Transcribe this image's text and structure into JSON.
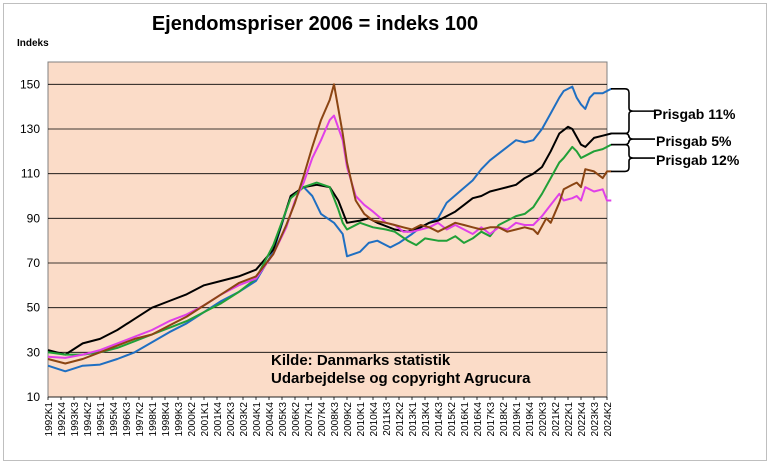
{
  "chart_data": {
    "type": "line",
    "title": "Ejendomspriser 2006 = indeks 100",
    "ylabel": "Indeks",
    "xlabel": "",
    "ylim": [
      10,
      160
    ],
    "yticks": [
      10,
      30,
      50,
      70,
      90,
      110,
      130,
      150
    ],
    "grid": true,
    "legend": "none",
    "plot_background": "#fbdcc8",
    "x_tick_labels": [
      "1992K1",
      "1992K4",
      "1993K3",
      "1994K2",
      "1995K1",
      "1995K4",
      "1996K3",
      "1997K2",
      "1998K1",
      "1998K4",
      "1999K3",
      "2000K2",
      "2001K1",
      "2001K4",
      "2002K3",
      "2003K2",
      "2004K1",
      "2004K4",
      "2005K3",
      "2006K2",
      "2007K1",
      "2007K4",
      "2008K3",
      "2009K2",
      "2010K1",
      "2010K4",
      "2011K3",
      "2012K2",
      "2013K1",
      "2013K4",
      "2014K3",
      "2015K2",
      "2016K1",
      "2016K4",
      "2017K3",
      "2018K2",
      "2019K1",
      "2019K4",
      "2020K3",
      "2021K2",
      "2022K1",
      "2022K4",
      "2023K3",
      "2024K2"
    ],
    "x_start_year": 1992,
    "quarters_per_year": 4,
    "series": [
      {
        "color": "#1f6fc2",
        "points": [
          [
            1992,
            24
          ],
          [
            1993,
            21.5
          ],
          [
            1994,
            24
          ],
          [
            1995,
            24.5
          ],
          [
            1996,
            27
          ],
          [
            1997,
            30
          ],
          [
            1998,
            34.5
          ],
          [
            1999,
            39
          ],
          [
            2000,
            43
          ],
          [
            2001,
            48
          ],
          [
            2002,
            53
          ],
          [
            2003,
            57
          ],
          [
            2004,
            62
          ],
          [
            2005,
            75
          ],
          [
            2006,
            100
          ],
          [
            2006.75,
            104
          ],
          [
            2007.25,
            100
          ],
          [
            2007.75,
            92
          ],
          [
            2008.5,
            88
          ],
          [
            2009.0,
            83
          ],
          [
            2009.25,
            73
          ],
          [
            2010,
            75
          ],
          [
            2010.5,
            79
          ],
          [
            2011,
            80
          ],
          [
            2011.75,
            77
          ],
          [
            2012.25,
            79
          ],
          [
            2013,
            83
          ],
          [
            2013.5,
            86
          ],
          [
            2014,
            88
          ],
          [
            2014.5,
            90
          ],
          [
            2015,
            97
          ],
          [
            2015.75,
            102
          ],
          [
            2016.5,
            107
          ],
          [
            2017,
            112
          ],
          [
            2017.5,
            116
          ],
          [
            2018,
            119
          ],
          [
            2018.5,
            122
          ],
          [
            2019,
            125
          ],
          [
            2019.5,
            124
          ],
          [
            2020,
            125
          ],
          [
            2020.5,
            130
          ],
          [
            2021,
            137
          ],
          [
            2021.5,
            144
          ],
          [
            2021.75,
            147
          ],
          [
            2022.25,
            149
          ],
          [
            2022.5,
            144
          ],
          [
            2022.75,
            141
          ],
          [
            2023.0,
            139
          ],
          [
            2023.25,
            144
          ],
          [
            2023.5,
            146
          ],
          [
            2024,
            146
          ],
          [
            2024.5,
            148
          ]
        ]
      },
      {
        "color": "#000000",
        "points": [
          [
            1992,
            31
          ],
          [
            1993,
            29
          ],
          [
            1994,
            34
          ],
          [
            1995,
            36
          ],
          [
            1996,
            40
          ],
          [
            1997,
            45
          ],
          [
            1998,
            50
          ],
          [
            1999,
            53
          ],
          [
            2000,
            56
          ],
          [
            2001,
            60
          ],
          [
            2002,
            62
          ],
          [
            2003,
            64
          ],
          [
            2004,
            67
          ],
          [
            2005,
            76
          ],
          [
            2006,
            100
          ],
          [
            2006.75,
            104
          ],
          [
            2007.5,
            105
          ],
          [
            2008.25,
            104
          ],
          [
            2008.75,
            98
          ],
          [
            2009.25,
            88
          ],
          [
            2010,
            89
          ],
          [
            2010.5,
            90
          ],
          [
            2011,
            88
          ],
          [
            2012,
            85
          ],
          [
            2012.75,
            84
          ],
          [
            2013.5,
            86
          ],
          [
            2014,
            88
          ],
          [
            2014.5,
            89
          ],
          [
            2015,
            91
          ],
          [
            2015.5,
            93
          ],
          [
            2016,
            96
          ],
          [
            2016.5,
            99
          ],
          [
            2017,
            100
          ],
          [
            2017.5,
            102
          ],
          [
            2018,
            103
          ],
          [
            2018.5,
            104
          ],
          [
            2019,
            105
          ],
          [
            2019.5,
            108
          ],
          [
            2020,
            110
          ],
          [
            2020.5,
            113
          ],
          [
            2021,
            120
          ],
          [
            2021.5,
            128
          ],
          [
            2022.0,
            131
          ],
          [
            2022.25,
            130
          ],
          [
            2022.75,
            123
          ],
          [
            2023.0,
            122
          ],
          [
            2023.5,
            126
          ],
          [
            2024,
            127
          ],
          [
            2024.5,
            128
          ]
        ]
      },
      {
        "color": "#21a038",
        "points": [
          [
            1992,
            30
          ],
          [
            1993,
            29
          ],
          [
            1994,
            29
          ],
          [
            1995,
            30
          ],
          [
            1996,
            32
          ],
          [
            1997,
            35
          ],
          [
            1998,
            38
          ],
          [
            1999,
            41
          ],
          [
            2000,
            44
          ],
          [
            2001,
            48
          ],
          [
            2002,
            52
          ],
          [
            2003,
            57
          ],
          [
            2004,
            63
          ],
          [
            2005,
            78
          ],
          [
            2006,
            99
          ],
          [
            2006.75,
            104
          ],
          [
            2007.5,
            106
          ],
          [
            2008.25,
            104
          ],
          [
            2008.75,
            94
          ],
          [
            2009.0,
            88
          ],
          [
            2009.25,
            85
          ],
          [
            2010,
            88
          ],
          [
            2010.75,
            86
          ],
          [
            2011.5,
            85
          ],
          [
            2012,
            84
          ],
          [
            2012.75,
            80
          ],
          [
            2013.25,
            78
          ],
          [
            2013.75,
            81
          ],
          [
            2014.5,
            80
          ],
          [
            2015,
            80
          ],
          [
            2015.5,
            82
          ],
          [
            2016,
            79
          ],
          [
            2016.5,
            81
          ],
          [
            2017,
            84
          ],
          [
            2017.5,
            82
          ],
          [
            2018,
            87
          ],
          [
            2018.5,
            89
          ],
          [
            2019,
            91
          ],
          [
            2019.5,
            92
          ],
          [
            2020,
            95
          ],
          [
            2020.5,
            101
          ],
          [
            2021,
            108
          ],
          [
            2021.5,
            115
          ],
          [
            2021.75,
            117
          ],
          [
            2022.25,
            122
          ],
          [
            2022.5,
            120
          ],
          [
            2022.75,
            117
          ],
          [
            2023.0,
            118
          ],
          [
            2023.5,
            120
          ],
          [
            2024,
            121
          ],
          [
            2024.5,
            123
          ]
        ]
      },
      {
        "color": "#e040e8",
        "points": [
          [
            1992,
            28
          ],
          [
            1993,
            27.5
          ],
          [
            1994,
            29
          ],
          [
            1995,
            31
          ],
          [
            1996,
            34
          ],
          [
            1997,
            37
          ],
          [
            1998,
            40
          ],
          [
            1999,
            44
          ],
          [
            2000,
            47
          ],
          [
            2001,
            51
          ],
          [
            2002,
            56
          ],
          [
            2003,
            60
          ],
          [
            2004,
            63
          ],
          [
            2005,
            74
          ],
          [
            2005.75,
            86
          ],
          [
            2006.25,
            98
          ],
          [
            2006.75,
            106
          ],
          [
            2007.25,
            117
          ],
          [
            2007.75,
            125
          ],
          [
            2008.25,
            134
          ],
          [
            2008.5,
            136
          ],
          [
            2009.0,
            125
          ],
          [
            2009.25,
            113
          ],
          [
            2009.75,
            100
          ],
          [
            2010.25,
            96
          ],
          [
            2010.75,
            93
          ],
          [
            2011.5,
            88
          ],
          [
            2012,
            87
          ],
          [
            2012.5,
            84
          ],
          [
            2013,
            84
          ],
          [
            2013.5,
            85
          ],
          [
            2014,
            86
          ],
          [
            2014.5,
            88
          ],
          [
            2015,
            85
          ],
          [
            2015.5,
            87
          ],
          [
            2016,
            85
          ],
          [
            2016.5,
            83
          ],
          [
            2017,
            86
          ],
          [
            2017.5,
            83
          ],
          [
            2018,
            86
          ],
          [
            2018.5,
            85
          ],
          [
            2019,
            88
          ],
          [
            2019.5,
            87
          ],
          [
            2020,
            87
          ],
          [
            2020.5,
            91
          ],
          [
            2021,
            96
          ],
          [
            2021.5,
            101
          ],
          [
            2021.75,
            98
          ],
          [
            2022.25,
            99
          ],
          [
            2022.5,
            100
          ],
          [
            2022.75,
            98
          ],
          [
            2023.0,
            104
          ],
          [
            2023.5,
            102
          ],
          [
            2024,
            103
          ],
          [
            2024.25,
            98
          ],
          [
            2024.5,
            98
          ]
        ]
      },
      {
        "color": "#8b4513",
        "points": [
          [
            1992,
            27
          ],
          [
            1993,
            25
          ],
          [
            1994,
            27
          ],
          [
            1995,
            30
          ],
          [
            1996,
            33
          ],
          [
            1997,
            36
          ],
          [
            1998,
            38
          ],
          [
            1999,
            42
          ],
          [
            2000,
            46
          ],
          [
            2001,
            51
          ],
          [
            2002,
            56
          ],
          [
            2003,
            61
          ],
          [
            2004,
            64
          ],
          [
            2005,
            74
          ],
          [
            2005.75,
            87
          ],
          [
            2006.25,
            97
          ],
          [
            2006.75,
            109
          ],
          [
            2007.25,
            122
          ],
          [
            2007.75,
            134
          ],
          [
            2008.25,
            143
          ],
          [
            2008.5,
            150
          ],
          [
            2009.0,
            128
          ],
          [
            2009.25,
            115
          ],
          [
            2009.75,
            98
          ],
          [
            2010.25,
            92
          ],
          [
            2010.75,
            89
          ],
          [
            2011.5,
            88
          ],
          [
            2012,
            87
          ],
          [
            2012.5,
            86
          ],
          [
            2013,
            85
          ],
          [
            2013.5,
            87
          ],
          [
            2014,
            86
          ],
          [
            2014.5,
            84
          ],
          [
            2015,
            86
          ],
          [
            2015.5,
            88
          ],
          [
            2016,
            87
          ],
          [
            2016.5,
            86
          ],
          [
            2017,
            85
          ],
          [
            2017.5,
            86
          ],
          [
            2018,
            86
          ],
          [
            2018.5,
            84
          ],
          [
            2019,
            85
          ],
          [
            2019.5,
            86
          ],
          [
            2020,
            85
          ],
          [
            2020.25,
            83
          ],
          [
            2020.75,
            90
          ],
          [
            2021,
            88
          ],
          [
            2021.5,
            97
          ],
          [
            2021.75,
            103
          ],
          [
            2022.25,
            105
          ],
          [
            2022.5,
            106
          ],
          [
            2022.75,
            104
          ],
          [
            2023.0,
            112
          ],
          [
            2023.5,
            111
          ],
          [
            2024,
            108
          ],
          [
            2024.25,
            111
          ],
          [
            2024.5,
            111
          ]
        ]
      }
    ],
    "annotations": [
      "Prisgab 11%",
      "Prisgab 5%",
      "Prisgab 12%"
    ],
    "source_lines": [
      "Kilde: Danmarks statistik",
      "Udarbejdelse og copyright Agrucura"
    ]
  }
}
